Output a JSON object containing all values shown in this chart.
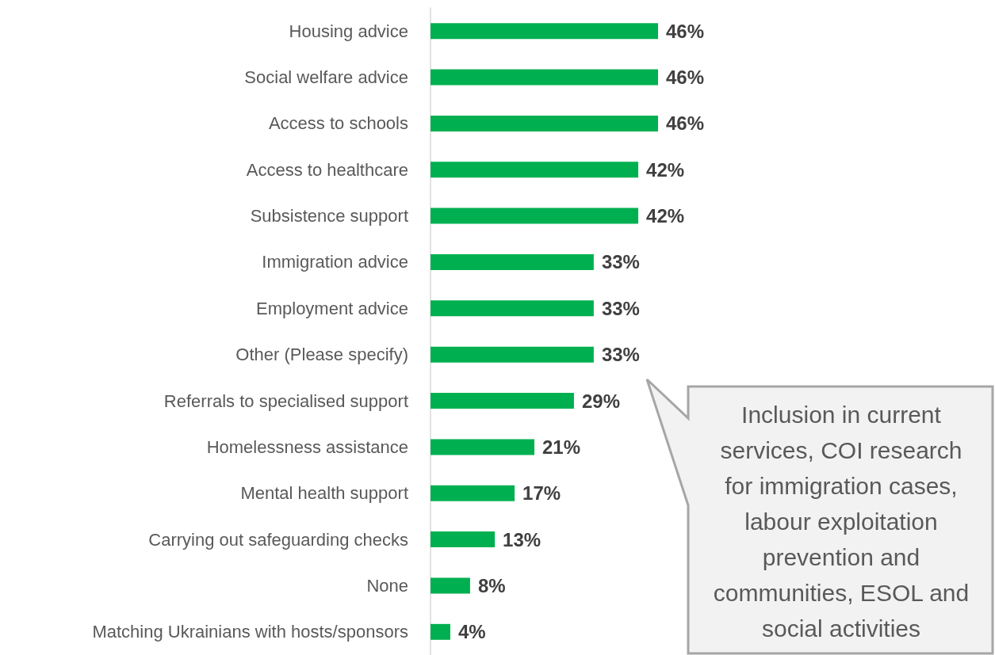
{
  "chart_data": {
    "type": "bar",
    "orientation": "horizontal",
    "categories": [
      "Housing advice",
      "Social welfare advice",
      "Access to schools",
      "Access to healthcare",
      "Subsistence support",
      "Immigration advice",
      "Employment advice",
      "Other (Please specify)",
      "Referrals to specialised support",
      "Homelessness assistance",
      "Mental health support",
      "Carrying out safeguarding checks",
      "None",
      "Matching Ukrainians with hosts/sponsors"
    ],
    "values": [
      46,
      46,
      46,
      42,
      42,
      33,
      33,
      33,
      29,
      21,
      17,
      13,
      8,
      4
    ],
    "value_labels": [
      "46%",
      "46%",
      "46%",
      "42%",
      "42%",
      "33%",
      "33%",
      "33%",
      "29%",
      "21%",
      "17%",
      "13%",
      "8%",
      "4%"
    ],
    "color": "#00b050",
    "annotations": [
      "Inclusion in current services, COI research for immigration cases, labour exploitation prevention and communities, ESOL and social activities"
    ],
    "grid": false
  }
}
